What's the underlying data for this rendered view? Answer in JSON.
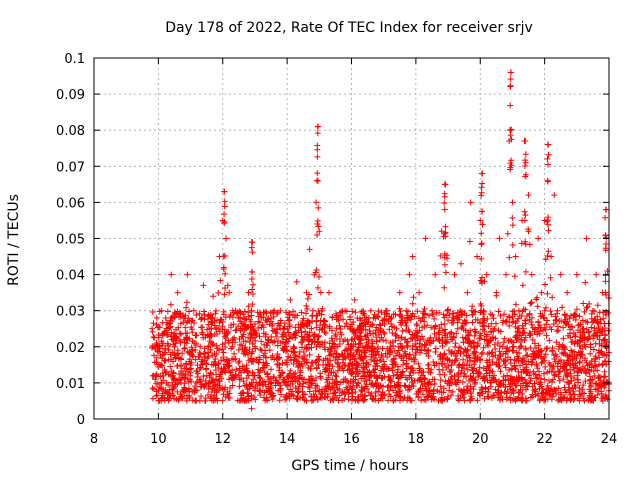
{
  "chart_data": {
    "type": "scatter",
    "title": "Day 178 of 2022, Rate Of TEC Index for receiver srjv",
    "xlabel": "GPS time / hours",
    "ylabel": "ROTI / TECUs",
    "xlim": [
      8,
      24
    ],
    "ylim": [
      0,
      0.1
    ],
    "xticks": [
      "8",
      "10",
      "12",
      "14",
      "16",
      "18",
      "20",
      "22",
      "24"
    ],
    "yticks": [
      "0",
      "0.01",
      "0.02",
      "0.03",
      "0.04",
      "0.05",
      "0.06",
      "0.07",
      "0.08",
      "0.09",
      "0.1"
    ],
    "grid": true,
    "marker": "plus",
    "color": "#ff0000",
    "series": [
      {
        "x_start": 9.8,
        "x_end": 24.0,
        "spikes": [
          {
            "x": 12.05,
            "y": 0.063
          },
          {
            "x": 12.9,
            "y": 0.049
          },
          {
            "x": 14.95,
            "y": 0.081
          },
          {
            "x": 18.9,
            "y": 0.065
          },
          {
            "x": 20.05,
            "y": 0.068
          },
          {
            "x": 20.95,
            "y": 0.096
          },
          {
            "x": 21.4,
            "y": 0.077
          },
          {
            "x": 22.1,
            "y": 0.076
          },
          {
            "x": 23.9,
            "y": 0.058
          }
        ],
        "points": [
          [
            9.85,
            0.012
          ],
          [
            9.9,
            0.02
          ],
          [
            9.95,
            0.028
          ],
          [
            10.0,
            0.008
          ],
          [
            10.05,
            0.015
          ],
          [
            10.1,
            0.03
          ],
          [
            10.2,
            0.018
          ],
          [
            10.3,
            0.025
          ],
          [
            10.4,
            0.04
          ],
          [
            10.45,
            0.012
          ],
          [
            10.5,
            0.02
          ],
          [
            10.6,
            0.035
          ],
          [
            10.7,
            0.01
          ],
          [
            10.8,
            0.022
          ],
          [
            10.9,
            0.04
          ],
          [
            11.0,
            0.015
          ],
          [
            11.1,
            0.03
          ],
          [
            11.2,
            0.008
          ],
          [
            11.3,
            0.02
          ],
          [
            11.4,
            0.037
          ],
          [
            11.5,
            0.012
          ],
          [
            11.6,
            0.025
          ],
          [
            11.7,
            0.034
          ],
          [
            11.8,
            0.018
          ],
          [
            11.9,
            0.045
          ],
          [
            12.0,
            0.055
          ],
          [
            12.05,
            0.063
          ],
          [
            12.1,
            0.05
          ],
          [
            12.2,
            0.035
          ],
          [
            12.3,
            0.02
          ],
          [
            12.4,
            0.03
          ],
          [
            12.5,
            0.012
          ],
          [
            12.6,
            0.025
          ],
          [
            12.7,
            0.018
          ],
          [
            12.8,
            0.035
          ],
          [
            12.9,
            0.049
          ],
          [
            13.0,
            0.02
          ],
          [
            13.1,
            0.012
          ],
          [
            13.2,
            0.028
          ],
          [
            13.3,
            0.015
          ],
          [
            13.4,
            0.022
          ],
          [
            13.5,
            0.01
          ],
          [
            13.6,
            0.03
          ],
          [
            13.7,
            0.018
          ],
          [
            13.8,
            0.012
          ],
          [
            13.9,
            0.025
          ],
          [
            14.0,
            0.015
          ],
          [
            14.1,
            0.033
          ],
          [
            14.2,
            0.02
          ],
          [
            14.3,
            0.038
          ],
          [
            14.4,
            0.012
          ],
          [
            14.5,
            0.022
          ],
          [
            14.6,
            0.035
          ],
          [
            14.7,
            0.047
          ],
          [
            14.8,
            0.03
          ],
          [
            14.9,
            0.06
          ],
          [
            14.95,
            0.081
          ],
          [
            15.0,
            0.052
          ],
          [
            15.1,
            0.025
          ],
          [
            15.2,
            0.015
          ],
          [
            15.3,
            0.035
          ],
          [
            15.4,
            0.02
          ],
          [
            15.5,
            0.012
          ],
          [
            15.6,
            0.028
          ],
          [
            15.7,
            0.018
          ],
          [
            15.8,
            0.03
          ],
          [
            15.9,
            0.01
          ],
          [
            16.0,
            0.022
          ],
          [
            16.1,
            0.033
          ],
          [
            16.2,
            0.015
          ],
          [
            16.3,
            0.025
          ],
          [
            16.4,
            0.012
          ],
          [
            16.5,
            0.02
          ],
          [
            16.6,
            0.03
          ],
          [
            16.7,
            0.016
          ],
          [
            16.8,
            0.01
          ],
          [
            16.9,
            0.025
          ],
          [
            17.0,
            0.014
          ],
          [
            17.1,
            0.03
          ],
          [
            17.2,
            0.02
          ],
          [
            17.3,
            0.012
          ],
          [
            17.4,
            0.025
          ],
          [
            17.5,
            0.035
          ],
          [
            17.6,
            0.015
          ],
          [
            17.7,
            0.03
          ],
          [
            17.8,
            0.04
          ],
          [
            17.9,
            0.045
          ],
          [
            18.0,
            0.02
          ],
          [
            18.1,
            0.035
          ],
          [
            18.2,
            0.028
          ],
          [
            18.3,
            0.05
          ],
          [
            18.4,
            0.015
          ],
          [
            18.5,
            0.03
          ],
          [
            18.6,
            0.04
          ],
          [
            18.7,
            0.022
          ],
          [
            18.8,
            0.052
          ],
          [
            18.9,
            0.065
          ],
          [
            19.0,
            0.03
          ],
          [
            19.1,
            0.018
          ],
          [
            19.2,
            0.04
          ],
          [
            19.3,
            0.025
          ],
          [
            19.4,
            0.043
          ],
          [
            19.5,
            0.015
          ],
          [
            19.6,
            0.035
          ],
          [
            19.7,
            0.06
          ],
          [
            19.8,
            0.02
          ],
          [
            19.9,
            0.045
          ],
          [
            20.0,
            0.055
          ],
          [
            20.05,
            0.068
          ],
          [
            20.1,
            0.03
          ],
          [
            20.2,
            0.04
          ],
          [
            20.3,
            0.015
          ],
          [
            20.4,
            0.025
          ],
          [
            20.5,
            0.035
          ],
          [
            20.6,
            0.05
          ],
          [
            20.7,
            0.02
          ],
          [
            20.8,
            0.04
          ],
          [
            20.9,
            0.077
          ],
          [
            20.95,
            0.096
          ],
          [
            21.0,
            0.06
          ],
          [
            21.1,
            0.045
          ],
          [
            21.2,
            0.03
          ],
          [
            21.3,
            0.055
          ],
          [
            21.4,
            0.077
          ],
          [
            21.5,
            0.062
          ],
          [
            21.6,
            0.04
          ],
          [
            21.7,
            0.025
          ],
          [
            21.8,
            0.05
          ],
          [
            21.9,
            0.035
          ],
          [
            22.0,
            0.055
          ],
          [
            22.1,
            0.076
          ],
          [
            22.2,
            0.045
          ],
          [
            22.3,
            0.062
          ],
          [
            22.4,
            0.03
          ],
          [
            22.5,
            0.04
          ],
          [
            22.6,
            0.02
          ],
          [
            22.7,
            0.035
          ],
          [
            22.8,
            0.015
          ],
          [
            22.9,
            0.028
          ],
          [
            23.0,
            0.04
          ],
          [
            23.1,
            0.018
          ],
          [
            23.2,
            0.032
          ],
          [
            23.3,
            0.05
          ],
          [
            23.4,
            0.015
          ],
          [
            23.5,
            0.03
          ],
          [
            23.6,
            0.04
          ],
          [
            23.7,
            0.022
          ],
          [
            23.8,
            0.035
          ],
          [
            23.9,
            0.058
          ],
          [
            23.95,
            0.041
          ]
        ]
      }
    ]
  }
}
